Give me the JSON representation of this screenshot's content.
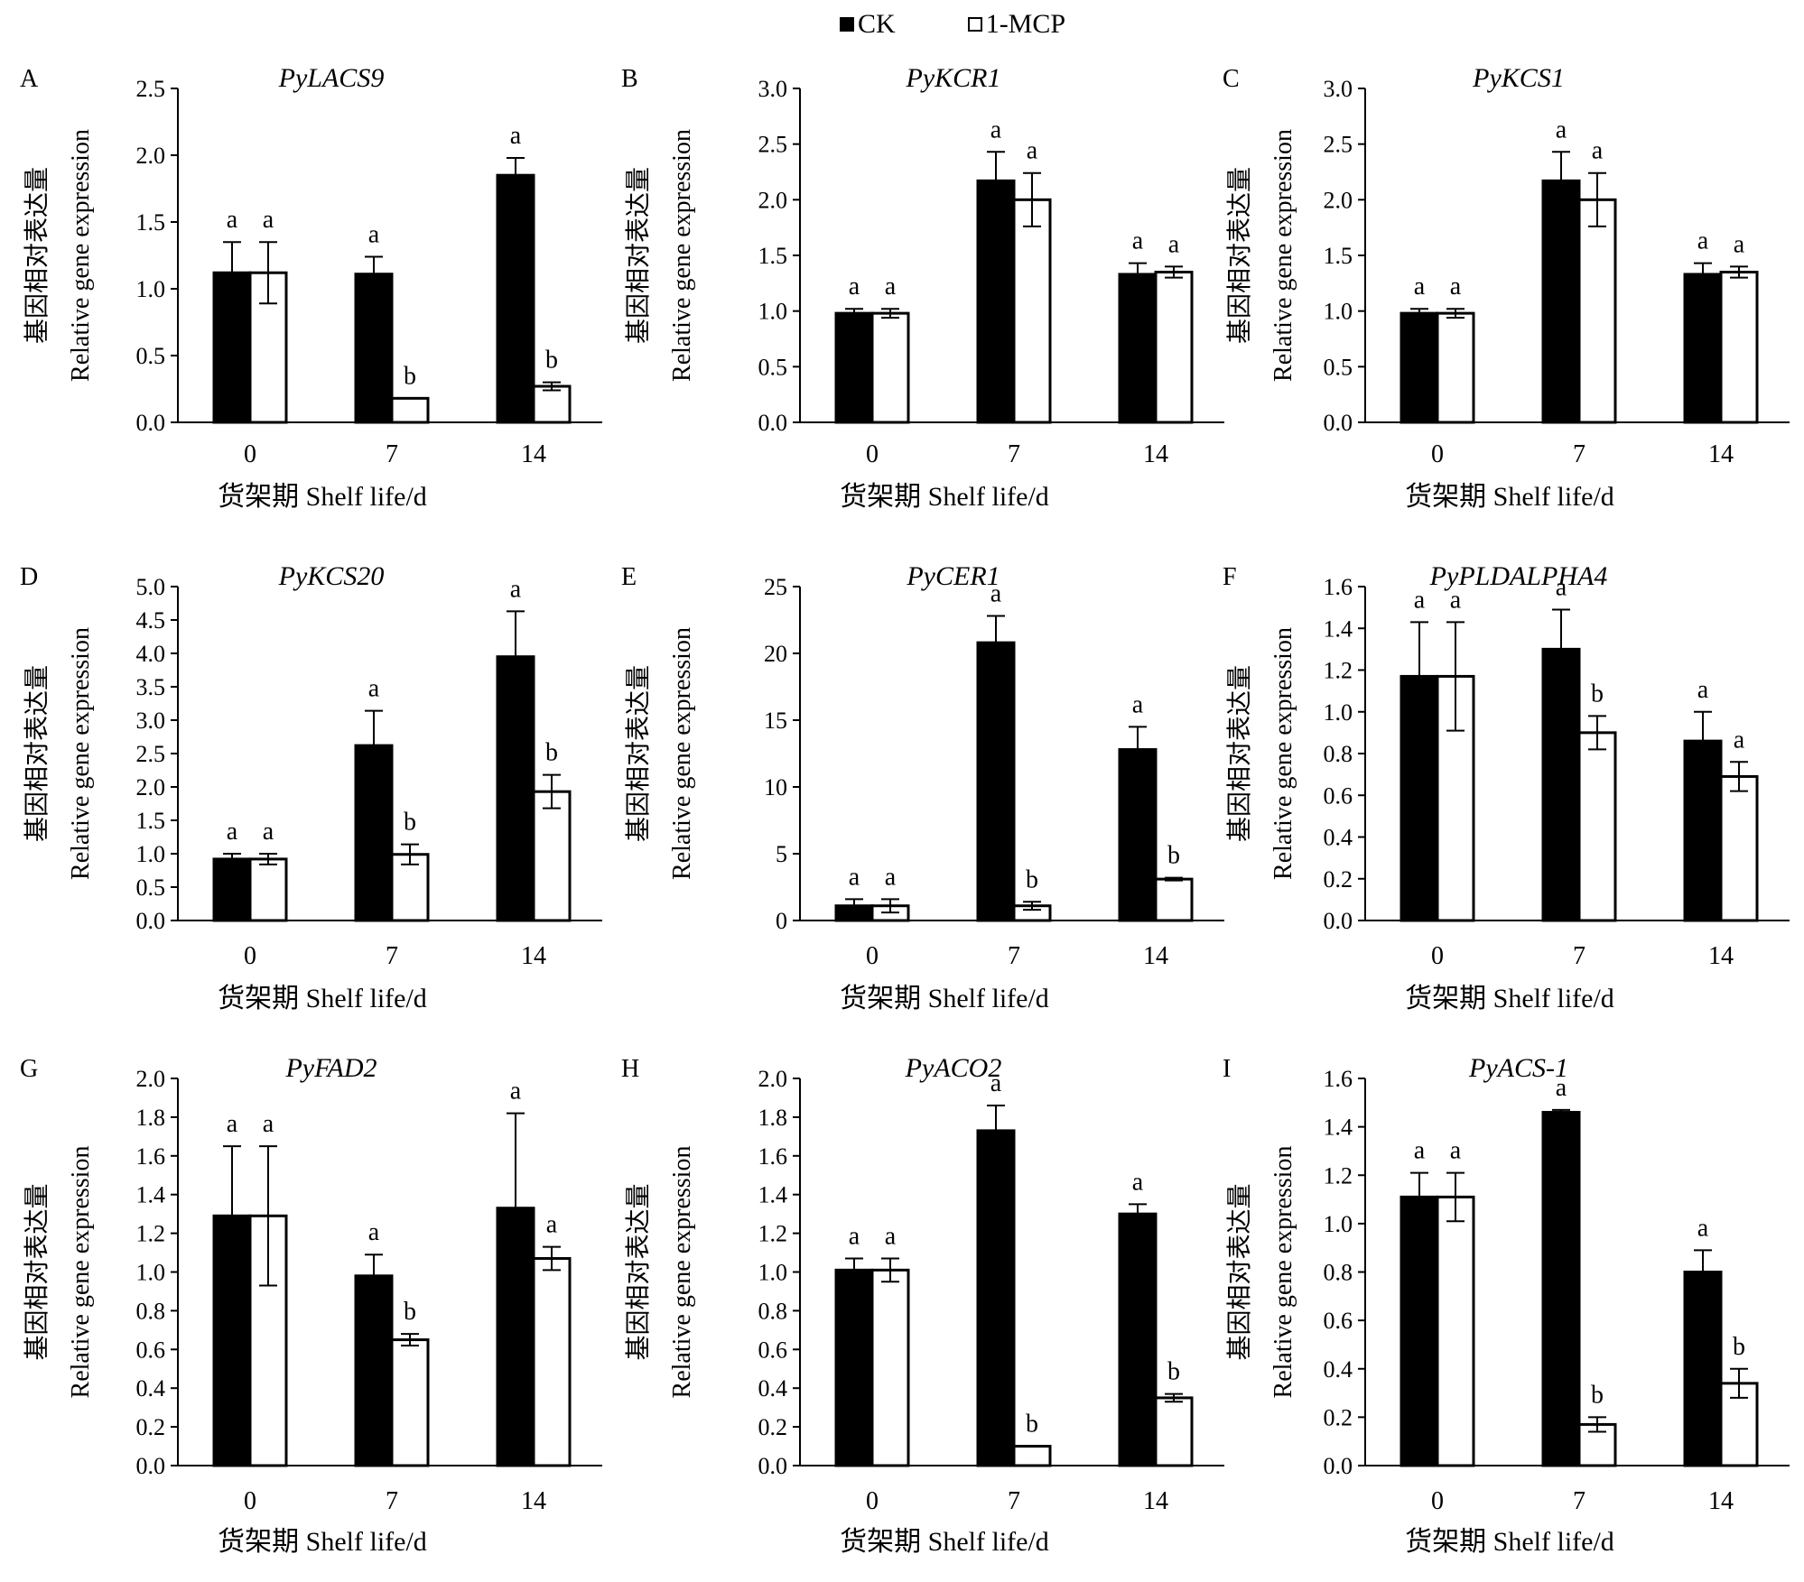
{
  "legend": {
    "ck_label": "CK",
    "mcp_label": "1-MCP",
    "ck_color": "#000000",
    "mcp_color": "#ffffff"
  },
  "chart_data": [
    {
      "panel": "A",
      "type": "bar",
      "title": "PyLACS9",
      "xlabel": "货架期 Shelf life/d",
      "ylabel_cn": "基因相对表达量",
      "ylabel_en": "Relative gene expression",
      "categories": [
        "0",
        "7",
        "14"
      ],
      "ylim": [
        0,
        2.5
      ],
      "yticks": [
        "0.0",
        "0.5",
        "1.0",
        "1.5",
        "2.0",
        "2.5"
      ],
      "series": [
        {
          "name": "CK",
          "values": [
            1.12,
            1.11,
            1.85
          ],
          "errors": [
            0.23,
            0.13,
            0.13
          ],
          "letters": [
            "a",
            "a",
            "a"
          ]
        },
        {
          "name": "1-MCP",
          "values": [
            1.12,
            0.18,
            0.27
          ],
          "errors": [
            0.23,
            0.0,
            0.03
          ],
          "letters": [
            "a",
            "b",
            "b"
          ]
        }
      ]
    },
    {
      "panel": "B",
      "type": "bar",
      "title": "PyKCR1",
      "xlabel": "货架期 Shelf life/d",
      "ylabel_cn": "基因相对表达量",
      "ylabel_en": "Relative gene expression",
      "categories": [
        "0",
        "7",
        "14"
      ],
      "ylim": [
        0,
        3.0
      ],
      "yticks": [
        "0.0",
        "0.5",
        "1.0",
        "1.5",
        "2.0",
        "2.5",
        "3.0"
      ],
      "series": [
        {
          "name": "CK",
          "values": [
            0.98,
            2.17,
            1.33
          ],
          "errors": [
            0.04,
            0.26,
            0.1
          ],
          "letters": [
            "a",
            "a",
            "a"
          ]
        },
        {
          "name": "1-MCP",
          "values": [
            0.98,
            2.0,
            1.35
          ],
          "errors": [
            0.04,
            0.24,
            0.05
          ],
          "letters": [
            "a",
            "a",
            "a"
          ]
        }
      ]
    },
    {
      "panel": "C",
      "type": "bar",
      "title": "PyKCS1",
      "xlabel": "货架期 Shelf life/d",
      "ylabel_cn": "基因相对表达量",
      "ylabel_en": "Relative gene expression",
      "categories": [
        "0",
        "7",
        "14"
      ],
      "ylim": [
        0,
        3.0
      ],
      "yticks": [
        "0.0",
        "0.5",
        "1.0",
        "1.5",
        "2.0",
        "2.5",
        "3.0"
      ],
      "series": [
        {
          "name": "CK",
          "values": [
            0.98,
            2.17,
            1.33
          ],
          "errors": [
            0.04,
            0.26,
            0.1
          ],
          "letters": [
            "a",
            "a",
            "a"
          ]
        },
        {
          "name": "1-MCP",
          "values": [
            0.98,
            2.0,
            1.35
          ],
          "errors": [
            0.04,
            0.24,
            0.05
          ],
          "letters": [
            "a",
            "a",
            "a"
          ]
        }
      ]
    },
    {
      "panel": "D",
      "type": "bar",
      "title": "PyKCS20",
      "xlabel": "货架期 Shelf life/d",
      "ylabel_cn": "基因相对表达量",
      "ylabel_en": "Relative gene expression",
      "categories": [
        "0",
        "7",
        "14"
      ],
      "ylim": [
        0,
        5.0
      ],
      "yticks": [
        "0.0",
        "0.5",
        "1.0",
        "1.5",
        "2.0",
        "2.5",
        "3.0",
        "3.5",
        "4.0",
        "4.5",
        "5.0"
      ],
      "series": [
        {
          "name": "CK",
          "values": [
            0.92,
            2.62,
            3.95
          ],
          "errors": [
            0.08,
            0.52,
            0.68
          ],
          "letters": [
            "a",
            "a",
            "a"
          ]
        },
        {
          "name": "1-MCP",
          "values": [
            0.92,
            0.99,
            1.93
          ],
          "errors": [
            0.08,
            0.15,
            0.25
          ],
          "letters": [
            "a",
            "b",
            "b"
          ]
        }
      ]
    },
    {
      "panel": "E",
      "type": "bar",
      "title": "PyCER1",
      "xlabel": "货架期 Shelf life/d",
      "ylabel_cn": "基因相对表达量",
      "ylabel_en": "Relative gene expression",
      "categories": [
        "0",
        "7",
        "14"
      ],
      "ylim": [
        0,
        25
      ],
      "yticks": [
        "0",
        "5",
        "10",
        "15",
        "20",
        "25"
      ],
      "series": [
        {
          "name": "CK",
          "values": [
            1.1,
            20.8,
            12.8
          ],
          "errors": [
            0.5,
            2.0,
            1.7
          ],
          "letters": [
            "a",
            "a",
            "a"
          ]
        },
        {
          "name": "1-MCP",
          "values": [
            1.1,
            1.1,
            3.1
          ],
          "errors": [
            0.5,
            0.3,
            0.1
          ],
          "letters": [
            "a",
            "b",
            "b"
          ]
        }
      ]
    },
    {
      "panel": "F",
      "type": "bar",
      "title": "PyPLDALPHA4",
      "xlabel": "货架期 Shelf life/d",
      "ylabel_cn": "基因相对表达量",
      "ylabel_en": "Relative gene expression",
      "categories": [
        "0",
        "7",
        "14"
      ],
      "ylim": [
        0,
        1.6
      ],
      "yticks": [
        "0.0",
        "0.2",
        "0.4",
        "0.6",
        "0.8",
        "1.0",
        "1.2",
        "1.4",
        "1.6"
      ],
      "series": [
        {
          "name": "CK",
          "values": [
            1.17,
            1.3,
            0.86
          ],
          "errors": [
            0.26,
            0.19,
            0.14
          ],
          "letters": [
            "a",
            "a",
            "a"
          ]
        },
        {
          "name": "1-MCP",
          "values": [
            1.17,
            0.9,
            0.69
          ],
          "errors": [
            0.26,
            0.08,
            0.07
          ],
          "letters": [
            "a",
            "b",
            "a"
          ]
        }
      ]
    },
    {
      "panel": "G",
      "type": "bar",
      "title": "PyFAD2",
      "xlabel": "货架期 Shelf life/d",
      "ylabel_cn": "基因相对表达量",
      "ylabel_en": "Relative gene expression",
      "categories": [
        "0",
        "7",
        "14"
      ],
      "ylim": [
        0,
        2.0
      ],
      "yticks": [
        "0.0",
        "0.2",
        "0.4",
        "0.6",
        "0.8",
        "1.0",
        "1.2",
        "1.4",
        "1.6",
        "1.8",
        "2.0"
      ],
      "series": [
        {
          "name": "CK",
          "values": [
            1.29,
            0.98,
            1.33
          ],
          "errors": [
            0.36,
            0.11,
            0.49
          ],
          "letters": [
            "a",
            "a",
            "a"
          ]
        },
        {
          "name": "1-MCP",
          "values": [
            1.29,
            0.65,
            1.07
          ],
          "errors": [
            0.36,
            0.03,
            0.06
          ],
          "letters": [
            "a",
            "b",
            "a"
          ]
        }
      ]
    },
    {
      "panel": "H",
      "type": "bar",
      "title": "PyACO2",
      "xlabel": "货架期 Shelf life/d",
      "ylabel_cn": "基因相对表达量",
      "ylabel_en": "Relative gene expression",
      "categories": [
        "0",
        "7",
        "14"
      ],
      "ylim": [
        0,
        2.0
      ],
      "yticks": [
        "0.0",
        "0.2",
        "0.4",
        "0.6",
        "0.8",
        "1.0",
        "1.2",
        "1.4",
        "1.6",
        "1.8",
        "2.0"
      ],
      "series": [
        {
          "name": "CK",
          "values": [
            1.01,
            1.73,
            1.3
          ],
          "errors": [
            0.06,
            0.13,
            0.05
          ],
          "letters": [
            "a",
            "a",
            "a"
          ]
        },
        {
          "name": "1-MCP",
          "values": [
            1.01,
            0.1,
            0.35
          ],
          "errors": [
            0.06,
            0.0,
            0.02
          ],
          "letters": [
            "a",
            "b",
            "b"
          ]
        }
      ]
    },
    {
      "panel": "I",
      "type": "bar",
      "title": "PyACS-1",
      "xlabel": "货架期 Shelf life/d",
      "ylabel_cn": "基因相对表达量",
      "ylabel_en": "Relative gene expression",
      "categories": [
        "0",
        "7",
        "14"
      ],
      "ylim": [
        0,
        1.6
      ],
      "yticks": [
        "0.0",
        "0.2",
        "0.4",
        "0.6",
        "0.8",
        "1.0",
        "1.2",
        "1.4",
        "1.6"
      ],
      "series": [
        {
          "name": "CK",
          "values": [
            1.11,
            1.46,
            0.8
          ],
          "errors": [
            0.1,
            0.01,
            0.09
          ],
          "letters": [
            "a",
            "a",
            "a"
          ]
        },
        {
          "name": "1-MCP",
          "values": [
            1.11,
            0.17,
            0.34
          ],
          "errors": [
            0.1,
            0.03,
            0.06
          ],
          "letters": [
            "a",
            "b",
            "b"
          ]
        }
      ]
    }
  ]
}
